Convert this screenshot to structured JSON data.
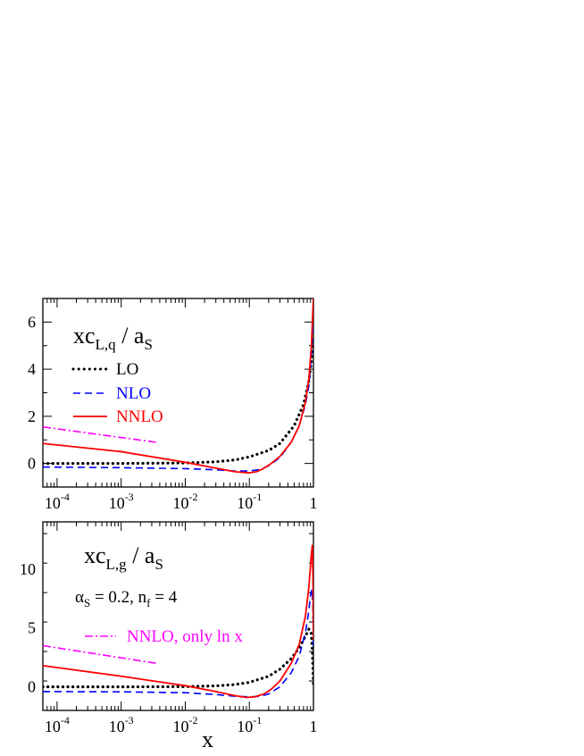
{
  "chart_data": [
    {
      "type": "line",
      "title_parts": {
        "main": "xc",
        "sub": "L,q",
        "mid": " / a",
        "sub2": "S"
      },
      "x_scale": "log",
      "xlim": [
        6e-05,
        1
      ],
      "ylim": [
        -1,
        7
      ],
      "y_ticks": [
        0,
        2,
        4,
        6
      ],
      "x_tick_labels": [
        {
          "x": 0.0001,
          "base": "10",
          "exp": "-4"
        },
        {
          "x": 0.001,
          "base": "10",
          "exp": "-3"
        },
        {
          "x": 0.01,
          "base": "10",
          "exp": "-2"
        },
        {
          "x": 0.1,
          "base": "10",
          "exp": "-1"
        },
        {
          "x": 1,
          "base": "1",
          "exp": ""
        }
      ],
      "legend": [
        {
          "label": "LO",
          "color": "#000000",
          "dash": "dot"
        },
        {
          "label": "NLO",
          "color": "#0000ff",
          "dash": "dash"
        },
        {
          "label": "NNLO",
          "color": "#ff0000",
          "dash": "solid"
        }
      ],
      "annotation": "",
      "series": [
        {
          "name": "LO",
          "color": "#000000",
          "dash": "dot",
          "x": [
            6e-05,
            0.001,
            0.01,
            0.03,
            0.06,
            0.1,
            0.2,
            0.3,
            0.5,
            0.7,
            0.85,
            0.95,
            1.0
          ],
          "y": [
            0.0,
            0.0,
            0.02,
            0.07,
            0.15,
            0.28,
            0.55,
            0.85,
            1.6,
            2.5,
            3.5,
            4.6,
            5.3
          ]
        },
        {
          "name": "NLO",
          "color": "#0000ff",
          "dash": "dash",
          "x": [
            6e-05,
            0.001,
            0.01,
            0.03,
            0.06,
            0.1,
            0.15,
            0.2,
            0.3,
            0.45,
            0.6,
            0.75,
            0.85,
            0.93,
            0.97,
            1.0
          ],
          "y": [
            -0.15,
            -0.18,
            -0.22,
            -0.27,
            -0.32,
            -0.32,
            -0.25,
            -0.1,
            0.25,
            0.9,
            1.6,
            2.5,
            3.3,
            4.6,
            5.5,
            6.0
          ]
        },
        {
          "name": "NNLO",
          "color": "#ff0000",
          "dash": "solid",
          "x": [
            6e-05,
            0.001,
            0.01,
            0.03,
            0.06,
            0.1,
            0.13,
            0.17,
            0.22,
            0.3,
            0.45,
            0.6,
            0.75,
            0.85,
            0.93,
            0.97,
            1.0
          ],
          "y": [
            0.85,
            0.5,
            0.05,
            -0.2,
            -0.35,
            -0.4,
            -0.35,
            -0.2,
            0.0,
            0.3,
            0.9,
            1.6,
            2.6,
            3.6,
            5.0,
            6.2,
            7.0
          ]
        },
        {
          "name": "NNLO, only ln x",
          "color": "#ff00ff",
          "dash": "dashdot",
          "x": [
            6e-05,
            0.0035
          ],
          "y": [
            1.55,
            0.9
          ]
        }
      ]
    },
    {
      "type": "line",
      "title_parts": {
        "main": "xc",
        "sub": "L,g",
        "mid": " / a",
        "sub2": "S"
      },
      "x_scale": "log",
      "xlim": [
        6e-05,
        1
      ],
      "ylim": [
        -2,
        14
      ],
      "y_ticks": [
        0,
        5,
        10
      ],
      "x_tick_labels": [
        {
          "x": 0.0001,
          "base": "10",
          "exp": "-4"
        },
        {
          "x": 0.001,
          "base": "10",
          "exp": "-3"
        },
        {
          "x": 0.01,
          "base": "10",
          "exp": "-2"
        },
        {
          "x": 0.1,
          "base": "10",
          "exp": "-1"
        },
        {
          "x": 1,
          "base": "1",
          "exp": ""
        }
      ],
      "xlabel": "x",
      "annotation_parts": {
        "alpha": "α",
        "alpha_sub": "S",
        "mid": " = 0.2, n",
        "nf_sub": "f",
        "end": " = 4"
      },
      "legend": [
        {
          "label": "NNLO, only ln x",
          "color": "#ff00ff",
          "dash": "dashdot"
        }
      ],
      "series": [
        {
          "name": "LO",
          "color": "#000000",
          "dash": "dot",
          "x": [
            6e-05,
            0.001,
            0.01,
            0.03,
            0.06,
            0.1,
            0.2,
            0.3,
            0.45,
            0.6,
            0.75,
            0.85,
            0.92,
            0.96,
            0.985,
            1.0
          ],
          "y": [
            0.0,
            0.0,
            0.02,
            0.08,
            0.2,
            0.38,
            0.9,
            1.5,
            2.4,
            3.3,
            4.3,
            4.9,
            4.6,
            3.2,
            1.5,
            0.0
          ]
        },
        {
          "name": "NLO",
          "color": "#0000ff",
          "dash": "dash",
          "x": [
            6e-05,
            0.001,
            0.01,
            0.03,
            0.06,
            0.1,
            0.15,
            0.2,
            0.3,
            0.45,
            0.6,
            0.75,
            0.85,
            0.9,
            0.95,
            0.98,
            1.0
          ],
          "y": [
            -0.4,
            -0.42,
            -0.5,
            -0.65,
            -0.8,
            -0.85,
            -0.8,
            -0.6,
            0.0,
            1.2,
            2.6,
            4.6,
            6.5,
            7.8,
            8.3,
            6.8,
            3.0
          ]
        },
        {
          "name": "NNLO",
          "color": "#ff0000",
          "dash": "solid",
          "x": [
            6e-05,
            0.001,
            0.01,
            0.03,
            0.06,
            0.09,
            0.12,
            0.17,
            0.22,
            0.3,
            0.45,
            0.6,
            0.75,
            0.85,
            0.92,
            0.96,
            0.985,
            1.0
          ],
          "y": [
            1.8,
            0.9,
            0.1,
            -0.4,
            -0.75,
            -0.9,
            -0.85,
            -0.6,
            -0.2,
            0.5,
            2.0,
            3.6,
            6.0,
            8.5,
            11.0,
            12.0,
            9.0,
            4.0
          ]
        },
        {
          "name": "NNLO, only ln x",
          "color": "#ff00ff",
          "dash": "dashdot",
          "x": [
            6e-05,
            0.0035
          ],
          "y": [
            3.5,
            2.0
          ]
        }
      ]
    }
  ]
}
